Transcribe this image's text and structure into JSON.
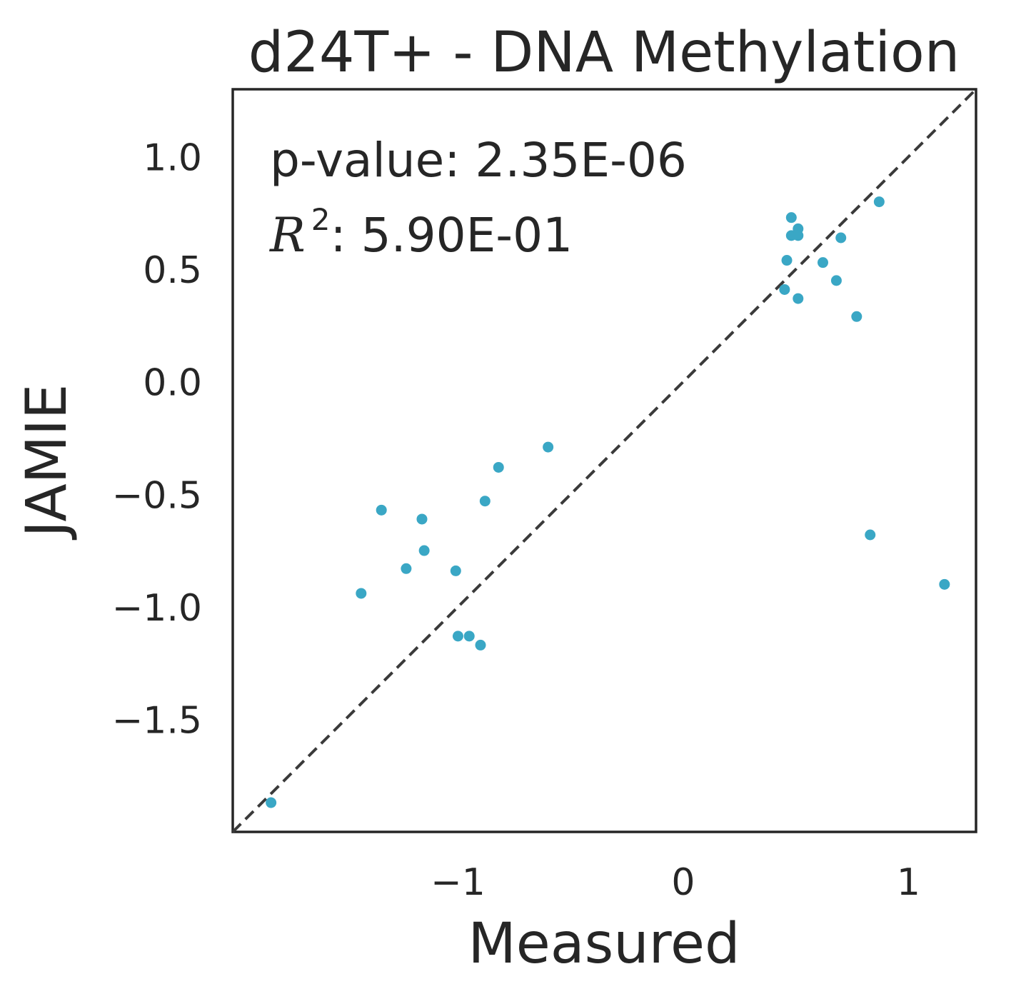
{
  "chart_data": {
    "type": "scatter",
    "title": "d24T+ - DNA Methylation",
    "xlabel": "Measured",
    "ylabel": "JAMIE",
    "xlim": [
      -2.0,
      1.3
    ],
    "ylim": [
      -2.0,
      1.3
    ],
    "xticks": [
      {
        "value": -1,
        "label": "−1"
      },
      {
        "value": 0,
        "label": "0"
      },
      {
        "value": 1,
        "label": "1"
      }
    ],
    "yticks": [
      {
        "value": 1.0,
        "label": "1.0"
      },
      {
        "value": 0.5,
        "label": "0.5"
      },
      {
        "value": 0.0,
        "label": "0.0"
      },
      {
        "value": -0.5,
        "label": "−0.5"
      },
      {
        "value": -1.0,
        "label": "−1.0"
      },
      {
        "value": -1.5,
        "label": "−1.5"
      }
    ],
    "grid": false,
    "reference_line": {
      "type": "identity",
      "style": "dashed",
      "color": "#3a3a3a"
    },
    "point_color": "#3aa7c5",
    "annotations": {
      "pvalue": "p-value: 2.35E-06",
      "r2_symbol": "R",
      "r2_exponent": "2",
      "r2_value": ": 5.90E-01"
    },
    "series": [
      {
        "points": [
          {
            "x": -1.83,
            "y": -1.87
          },
          {
            "x": -1.43,
            "y": -0.94
          },
          {
            "x": -1.34,
            "y": -0.57
          },
          {
            "x": -1.23,
            "y": -0.83
          },
          {
            "x": -1.16,
            "y": -0.61
          },
          {
            "x": -1.15,
            "y": -0.75
          },
          {
            "x": -1.01,
            "y": -0.84
          },
          {
            "x": -1.0,
            "y": -1.13
          },
          {
            "x": -0.95,
            "y": -1.13
          },
          {
            "x": -0.9,
            "y": -1.17
          },
          {
            "x": -0.88,
            "y": -0.53
          },
          {
            "x": -0.82,
            "y": -0.38
          },
          {
            "x": -0.6,
            "y": -0.29
          },
          {
            "x": 0.45,
            "y": 0.41
          },
          {
            "x": 0.46,
            "y": 0.54
          },
          {
            "x": 0.48,
            "y": 0.73
          },
          {
            "x": 0.48,
            "y": 0.65
          },
          {
            "x": 0.51,
            "y": 0.68
          },
          {
            "x": 0.51,
            "y": 0.65
          },
          {
            "x": 0.51,
            "y": 0.37
          },
          {
            "x": 0.62,
            "y": 0.53
          },
          {
            "x": 0.68,
            "y": 0.45
          },
          {
            "x": 0.7,
            "y": 0.64
          },
          {
            "x": 0.77,
            "y": 0.29
          },
          {
            "x": 0.83,
            "y": -0.68
          },
          {
            "x": 0.87,
            "y": 0.8
          },
          {
            "x": 1.16,
            "y": -0.9
          }
        ]
      }
    ]
  }
}
